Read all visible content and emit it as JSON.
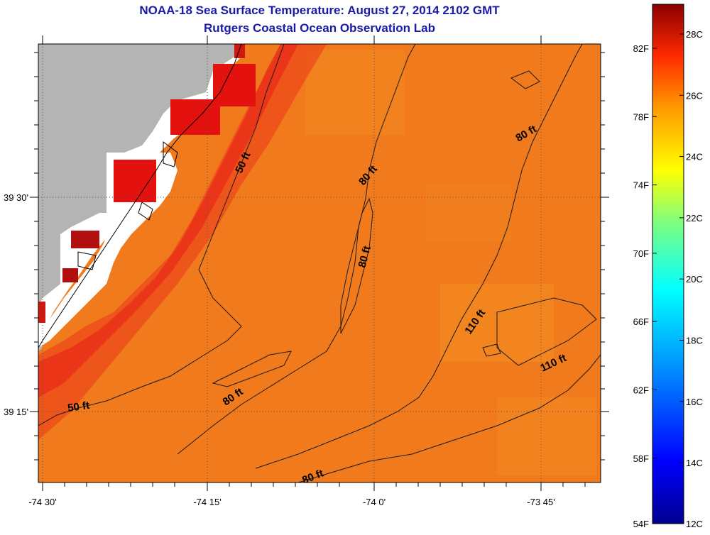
{
  "map": {
    "title": "NOAA-18 Sea Surface Temperature:  August 27, 2014 2102 GMT",
    "subtitle": "Rutgers Coastal Ocean Observation Lab",
    "lon_ticks": [
      "-74 30'",
      "-74 15'",
      "-74 0'",
      "-73 45'"
    ],
    "lat_ticks": [
      "39 30'",
      "39 15'"
    ],
    "contour_labels": [
      "50 ft",
      "80 ft",
      "80 ft",
      "80 ft",
      "110 ft",
      "110 ft",
      "50 ft",
      "80 ft",
      "80 ft"
    ],
    "colors": {
      "land": "#b4b4b4",
      "ocean_base": "#f07a1c",
      "nearshore_red": "#e8201a",
      "title": "#1a1aa6"
    }
  },
  "colorbar": {
    "fahrenheit_labels": [
      "82F",
      "78F",
      "74F",
      "70F",
      "66F",
      "62F",
      "58F",
      "54F"
    ],
    "celsius_labels": [
      "28C",
      "26C",
      "24C",
      "22C",
      "20C",
      "18C",
      "16C",
      "14C",
      "12C"
    ],
    "range_celsius": [
      12,
      29
    ]
  }
}
